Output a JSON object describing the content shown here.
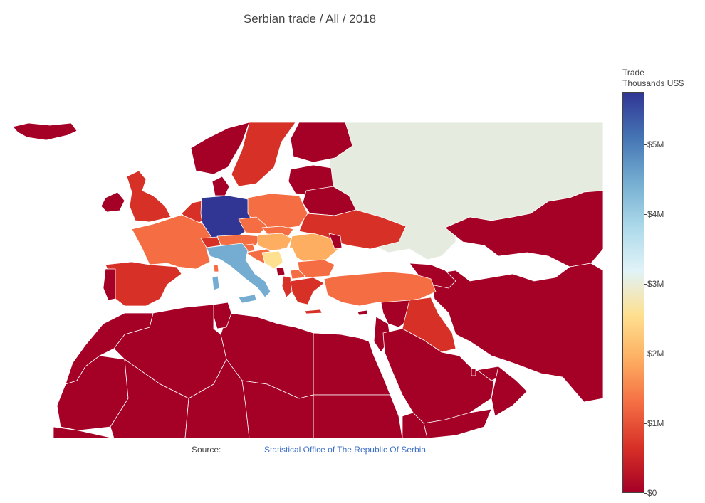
{
  "title": "Serbian trade / All / 2018",
  "source": {
    "label": "Source:",
    "link_text": "Statistical Office of The Republic Of Serbia"
  },
  "colorbar": {
    "title_line1": "Trade",
    "title_line2": "Thousands US$",
    "min": 0,
    "max": 5750,
    "ticks": [
      {
        "value": 0,
        "label": "$0"
      },
      {
        "value": 1000,
        "label": "$1M"
      },
      {
        "value": 2000,
        "label": "$2M"
      },
      {
        "value": 3000,
        "label": "$3M"
      },
      {
        "value": 4000,
        "label": "$4M"
      },
      {
        "value": 5000,
        "label": "$5M"
      }
    ],
    "colorscale": [
      "#a50026",
      "#d73027",
      "#f46d43",
      "#fdae61",
      "#fee090",
      "#e0f3f8",
      "#abd9e9",
      "#74add1",
      "#4575b4",
      "#313695"
    ]
  },
  "colors": {
    "no_data": "#e5ecdf",
    "water": "#ffffff",
    "border": "#ffffff"
  }
}
